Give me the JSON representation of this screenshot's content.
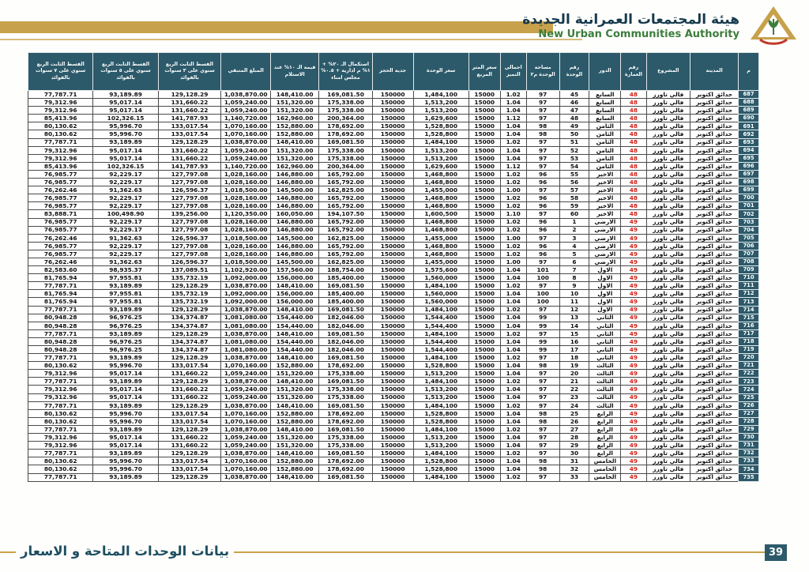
{
  "brand": {
    "title_ar": "هيئة المجتمعات العمرانية الجديدة",
    "title_en": "New Urban Communities Authority"
  },
  "footer": {
    "title": "بيانات الوحدات المتاحة و الاسعار",
    "page_number": "39"
  },
  "colors": {
    "header_teal": "#2c5a6a",
    "gold": "#c7a14b",
    "building_red": "#d02318",
    "title_green": "#3c7d3c",
    "title_dark": "#16394d"
  },
  "table": {
    "columns": [
      {
        "key": "serial",
        "label": "م",
        "width": "2.8%"
      },
      {
        "key": "city",
        "label": "المدينة",
        "width": "6.6%"
      },
      {
        "key": "project",
        "label": "المشروع",
        "width": "6.0%"
      },
      {
        "key": "building",
        "label": "رقم العمارة",
        "width": "3.5%"
      },
      {
        "key": "floor",
        "label": "الدور",
        "width": "4.3%"
      },
      {
        "key": "unit",
        "label": "رقم الوحدة",
        "width": "4.1%"
      },
      {
        "key": "area",
        "label": "مساحة الوحدة م٢",
        "width": "4.5%"
      },
      {
        "key": "premium",
        "label": "اجمالي التميز",
        "width": "3.6%"
      },
      {
        "key": "meter_price",
        "label": "سعر المتر المربع",
        "width": "4.3%"
      },
      {
        "key": "unit_price",
        "label": "سعر الوحدة",
        "width": "7.6%"
      },
      {
        "key": "reservation",
        "label": "جدية الحجز",
        "width": "5.6%"
      },
      {
        "key": "completion_20",
        "label": "استكمال الـ ٢٠% + ١% م ادارية + ٠.٥% مجلس امناء",
        "width": "7.3%"
      },
      {
        "key": "value_10",
        "label": "قيمة الـ ١٠% عند الاستلام",
        "width": "6.6%"
      },
      {
        "key": "remaining",
        "label": "المبلغ المتبقي",
        "width": "6.8%"
      },
      {
        "key": "installment_3y",
        "label": "القسط الثابت الربع سنوي على ٣ سنوات بالفوائد",
        "width": "8.6%"
      },
      {
        "key": "installment_5y",
        "label": "القسط الثابت الربع سنوي على ٥ سنوات بالفوائد",
        "width": "8.9%"
      },
      {
        "key": "installment_7y",
        "label": "القسط الثابت الربع سنوي على ٧ سنوات بالفوائد",
        "width": "8.9%"
      }
    ],
    "rows": [
      [
        "687",
        "حدائق اكتوبر",
        "فالي تاورز",
        "48",
        "السابع",
        "45",
        "97",
        "1.02",
        "15000",
        "1,484,100",
        "150000",
        "169,081.50",
        "148,410.00",
        "1,038,870.00",
        "129,128.29",
        "93,189.89",
        "77,787.71"
      ],
      [
        "688",
        "حدائق اكتوبر",
        "فالي تاورز",
        "48",
        "السابع",
        "46",
        "97",
        "1.04",
        "15000",
        "1,513,200",
        "150000",
        "175,338.00",
        "151,320.00",
        "1,059,240.00",
        "131,660.22",
        "95,017.14",
        "79,312.96"
      ],
      [
        "689",
        "حدائق اكتوبر",
        "فالي تاورز",
        "48",
        "السابع",
        "47",
        "97",
        "1.04",
        "15000",
        "1,513,200",
        "150000",
        "175,338.00",
        "151,320.00",
        "1,059,240.00",
        "131,660.22",
        "95,017.14",
        "79,312.96"
      ],
      [
        "690",
        "حدائق اكتوبر",
        "فالي تاورز",
        "48",
        "السابع",
        "48",
        "97",
        "1.12",
        "15000",
        "1,629,600",
        "150000",
        "200,364.00",
        "162,960.00",
        "1,140,720.00",
        "141,787.93",
        "102,326.15",
        "85,413.96"
      ],
      [
        "691",
        "حدائق اكتوبر",
        "فالي تاورز",
        "48",
        "الثامن",
        "49",
        "98",
        "1.04",
        "15000",
        "1,528,800",
        "150000",
        "178,692.00",
        "152,880.00",
        "1,070,160.00",
        "133,017.54",
        "95,996.70",
        "80,130.62"
      ],
      [
        "692",
        "حدائق اكتوبر",
        "فالي تاورز",
        "48",
        "الثامن",
        "50",
        "98",
        "1.04",
        "15000",
        "1,528,800",
        "150000",
        "178,692.00",
        "152,880.00",
        "1,070,160.00",
        "133,017.54",
        "95,996.70",
        "80,130.62"
      ],
      [
        "693",
        "حدائق اكتوبر",
        "فالي تاورز",
        "48",
        "الثامن",
        "51",
        "97",
        "1.02",
        "15000",
        "1,484,100",
        "150000",
        "169,081.50",
        "148,410.00",
        "1,038,870.00",
        "129,128.29",
        "93,189.89",
        "77,787.71"
      ],
      [
        "694",
        "حدائق اكتوبر",
        "فالي تاورز",
        "48",
        "الثامن",
        "52",
        "97",
        "1.04",
        "15000",
        "1,513,200",
        "150000",
        "175,338.00",
        "151,320.00",
        "1,059,240.00",
        "131,660.22",
        "95,017.14",
        "79,312.96"
      ],
      [
        "695",
        "حدائق اكتوبر",
        "فالي تاورز",
        "48",
        "الثامن",
        "53",
        "97",
        "1.04",
        "15000",
        "1,513,200",
        "150000",
        "175,338.00",
        "151,320.00",
        "1,059,240.00",
        "131,660.22",
        "95,017.14",
        "79,312.96"
      ],
      [
        "696",
        "حدائق اكتوبر",
        "فالي تاورز",
        "48",
        "الثامن",
        "54",
        "97",
        "1.12",
        "15000",
        "1,629,600",
        "150000",
        "200,364.00",
        "162,960.00",
        "1,140,720.00",
        "141,787.93",
        "102,326.15",
        "85,413.96"
      ],
      [
        "697",
        "حدائق اكتوبر",
        "فالي تاورز",
        "48",
        "الاخير",
        "55",
        "96",
        "1.02",
        "15000",
        "1,468,800",
        "150000",
        "165,792.00",
        "146,880.00",
        "1,028,160.00",
        "127,797.08",
        "92,229.17",
        "76,985.77"
      ],
      [
        "698",
        "حدائق اكتوبر",
        "فالي تاورز",
        "48",
        "الاخير",
        "56",
        "96",
        "1.02",
        "15000",
        "1,468,800",
        "150000",
        "165,792.00",
        "146,880.00",
        "1,028,160.00",
        "127,797.08",
        "92,229.17",
        "76,985.77"
      ],
      [
        "699",
        "حدائق اكتوبر",
        "فالي تاورز",
        "48",
        "الاخير",
        "57",
        "97",
        "1.00",
        "15000",
        "1,455,000",
        "150000",
        "162,825.00",
        "145,500.00",
        "1,018,500.00",
        "126,596.37",
        "91,362.63",
        "76,262.46"
      ],
      [
        "700",
        "حدائق اكتوبر",
        "فالي تاورز",
        "48",
        "الاخير",
        "58",
        "96",
        "1.02",
        "15000",
        "1,468,800",
        "150000",
        "165,792.00",
        "146,880.00",
        "1,028,160.00",
        "127,797.08",
        "92,229.17",
        "76,985.77"
      ],
      [
        "701",
        "حدائق اكتوبر",
        "فالي تاورز",
        "48",
        "الاخير",
        "59",
        "96",
        "1.02",
        "15000",
        "1,468,800",
        "150000",
        "165,792.00",
        "146,880.00",
        "1,028,160.00",
        "127,797.08",
        "92,229.17",
        "76,985.77"
      ],
      [
        "702",
        "حدائق اكتوبر",
        "فالي تاورز",
        "48",
        "الاخير",
        "60",
        "97",
        "1.10",
        "15000",
        "1,600,500",
        "150000",
        "194,107.50",
        "160,050.00",
        "1,120,350.00",
        "139,256.00",
        "100,498.90",
        "83,888.71"
      ],
      [
        "703",
        "حدائق اكتوبر",
        "فالي تاورز",
        "49",
        "الارضي",
        "1",
        "96",
        "1.02",
        "15000",
        "1,468,800",
        "150000",
        "165,792.00",
        "146,880.00",
        "1,028,160.00",
        "127,797.08",
        "92,229.17",
        "76,985.77"
      ],
      [
        "704",
        "حدائق اكتوبر",
        "فالي تاورز",
        "49",
        "الارضي",
        "2",
        "96",
        "1.02",
        "15000",
        "1,468,800",
        "150000",
        "165,792.00",
        "146,880.00",
        "1,028,160.00",
        "127,797.08",
        "92,229.17",
        "76,985.77"
      ],
      [
        "705",
        "حدائق اكتوبر",
        "فالي تاورز",
        "49",
        "الارضي",
        "3",
        "97",
        "1.00",
        "15000",
        "1,455,000",
        "150000",
        "162,825.00",
        "145,500.00",
        "1,018,500.00",
        "126,596.37",
        "91,362.63",
        "76,262.46"
      ],
      [
        "706",
        "حدائق اكتوبر",
        "فالي تاورز",
        "49",
        "الارضي",
        "4",
        "96",
        "1.02",
        "15000",
        "1,468,800",
        "150000",
        "165,792.00",
        "146,880.00",
        "1,028,160.00",
        "127,797.08",
        "92,229.17",
        "76,985.77"
      ],
      [
        "707",
        "حدائق اكتوبر",
        "فالي تاورز",
        "49",
        "الارضي",
        "5",
        "96",
        "1.02",
        "15000",
        "1,468,800",
        "150000",
        "165,792.00",
        "146,880.00",
        "1,028,160.00",
        "127,797.08",
        "92,229.17",
        "76,985.77"
      ],
      [
        "708",
        "حدائق اكتوبر",
        "فالي تاورز",
        "49",
        "الارضي",
        "6",
        "97",
        "1.00",
        "15000",
        "1,455,000",
        "150000",
        "162,825.00",
        "145,500.00",
        "1,018,500.00",
        "126,596.37",
        "91,362.63",
        "76,262.46"
      ],
      [
        "709",
        "حدائق اكتوبر",
        "فالي تاورز",
        "49",
        "الاول",
        "7",
        "101",
        "1.04",
        "15000",
        "1,575,600",
        "150000",
        "188,754.00",
        "157,560.00",
        "1,102,920.00",
        "137,089.51",
        "98,935.37",
        "82,583.60"
      ],
      [
        "710",
        "حدائق اكتوبر",
        "فالي تاورز",
        "49",
        "الاول",
        "8",
        "100",
        "1.04",
        "15000",
        "1,560,000",
        "150000",
        "185,400.00",
        "156,000.00",
        "1,092,000.00",
        "135,732.19",
        "97,955.81",
        "81,765.94"
      ],
      [
        "711",
        "حدائق اكتوبر",
        "فالي تاورز",
        "49",
        "الاول",
        "9",
        "97",
        "1.02",
        "15000",
        "1,484,100",
        "150000",
        "169,081.50",
        "148,410.00",
        "1,038,870.00",
        "129,128.29",
        "93,189.89",
        "77,787.71"
      ],
      [
        "712",
        "حدائق اكتوبر",
        "فالي تاورز",
        "49",
        "الاول",
        "10",
        "100",
        "1.04",
        "15000",
        "1,560,000",
        "150000",
        "185,400.00",
        "156,000.00",
        "1,092,000.00",
        "135,732.19",
        "97,955.81",
        "81,765.94"
      ],
      [
        "713",
        "حدائق اكتوبر",
        "فالي تاورز",
        "49",
        "الاول",
        "11",
        "100",
        "1.04",
        "15000",
        "1,560,000",
        "150000",
        "185,400.00",
        "156,000.00",
        "1,092,000.00",
        "135,732.19",
        "97,955.81",
        "81,765.94"
      ],
      [
        "714",
        "حدائق اكتوبر",
        "فالي تاورز",
        "49",
        "الاول",
        "12",
        "97",
        "1.02",
        "15000",
        "1,484,100",
        "150000",
        "169,081.50",
        "148,410.00",
        "1,038,870.00",
        "129,128.29",
        "93,189.89",
        "77,787.71"
      ],
      [
        "715",
        "حدائق اكتوبر",
        "فالي تاورز",
        "49",
        "الثاني",
        "13",
        "99",
        "1.04",
        "15000",
        "1,544,400",
        "150000",
        "182,046.00",
        "154,440.00",
        "1,081,080.00",
        "134,374.87",
        "96,976.25",
        "80,948.28"
      ],
      [
        "716",
        "حدائق اكتوبر",
        "فالي تاورز",
        "49",
        "الثاني",
        "14",
        "99",
        "1.04",
        "15000",
        "1,544,400",
        "150000",
        "182,046.00",
        "154,440.00",
        "1,081,080.00",
        "134,374.87",
        "96,976.25",
        "80,948.28"
      ],
      [
        "717",
        "حدائق اكتوبر",
        "فالي تاورز",
        "49",
        "الثاني",
        "15",
        "97",
        "1.02",
        "15000",
        "1,484,100",
        "150000",
        "169,081.50",
        "148,410.00",
        "1,038,870.00",
        "129,128.29",
        "93,189.89",
        "77,787.71"
      ],
      [
        "718",
        "حدائق اكتوبر",
        "فالي تاورز",
        "49",
        "الثاني",
        "16",
        "99",
        "1.04",
        "15000",
        "1,544,400",
        "150000",
        "182,046.00",
        "154,440.00",
        "1,081,080.00",
        "134,374.87",
        "96,976.25",
        "80,948.28"
      ],
      [
        "719",
        "حدائق اكتوبر",
        "فالي تاورز",
        "49",
        "الثاني",
        "17",
        "99",
        "1.04",
        "15000",
        "1,544,400",
        "150000",
        "182,046.00",
        "154,440.00",
        "1,081,080.00",
        "134,374.87",
        "96,976.25",
        "80,948.28"
      ],
      [
        "720",
        "حدائق اكتوبر",
        "فالي تاورز",
        "49",
        "الثاني",
        "18",
        "97",
        "1.02",
        "15000",
        "1,484,100",
        "150000",
        "169,081.50",
        "148,410.00",
        "1,038,870.00",
        "129,128.29",
        "93,189.89",
        "77,787.71"
      ],
      [
        "721",
        "حدائق اكتوبر",
        "فالي تاورز",
        "49",
        "الثالث",
        "19",
        "98",
        "1.04",
        "15000",
        "1,528,800",
        "150000",
        "178,692.00",
        "152,880.00",
        "1,070,160.00",
        "133,017.54",
        "95,996.70",
        "80,130.62"
      ],
      [
        "722",
        "حدائق اكتوبر",
        "فالي تاورز",
        "49",
        "الثالث",
        "20",
        "97",
        "1.04",
        "15000",
        "1,513,200",
        "150000",
        "175,338.00",
        "151,320.00",
        "1,059,240.00",
        "131,660.22",
        "95,017.14",
        "79,312.96"
      ],
      [
        "723",
        "حدائق اكتوبر",
        "فالي تاورز",
        "49",
        "الثالث",
        "21",
        "97",
        "1.02",
        "15000",
        "1,484,100",
        "150000",
        "169,081.50",
        "148,410.00",
        "1,038,870.00",
        "129,128.29",
        "93,189.89",
        "77,787.71"
      ],
      [
        "724",
        "حدائق اكتوبر",
        "فالي تاورز",
        "49",
        "الثالث",
        "22",
        "97",
        "1.04",
        "15000",
        "1,513,200",
        "150000",
        "175,338.00",
        "151,320.00",
        "1,059,240.00",
        "131,660.22",
        "95,017.14",
        "79,312.96"
      ],
      [
        "725",
        "حدائق اكتوبر",
        "فالي تاورز",
        "49",
        "الثالث",
        "23",
        "97",
        "1.04",
        "15000",
        "1,513,200",
        "150000",
        "175,338.00",
        "151,320.00",
        "1,059,240.00",
        "131,660.22",
        "95,017.14",
        "79,312.96"
      ],
      [
        "726",
        "حدائق اكتوبر",
        "فالي تاورز",
        "49",
        "الثالث",
        "24",
        "97",
        "1.02",
        "15000",
        "1,484,100",
        "150000",
        "169,081.50",
        "148,410.00",
        "1,038,870.00",
        "129,128.29",
        "93,189.89",
        "77,787.71"
      ],
      [
        "727",
        "حدائق اكتوبر",
        "فالي تاورز",
        "49",
        "الرابع",
        "25",
        "98",
        "1.04",
        "15000",
        "1,528,800",
        "150000",
        "178,692.00",
        "152,880.00",
        "1,070,160.00",
        "133,017.54",
        "95,996.70",
        "80,130.62"
      ],
      [
        "728",
        "حدائق اكتوبر",
        "فالي تاورز",
        "49",
        "الرابع",
        "26",
        "98",
        "1.04",
        "15000",
        "1,528,800",
        "150000",
        "178,692.00",
        "152,880.00",
        "1,070,160.00",
        "133,017.54",
        "95,996.70",
        "80,130.62"
      ],
      [
        "729",
        "حدائق اكتوبر",
        "فالي تاورز",
        "49",
        "الرابع",
        "27",
        "97",
        "1.02",
        "15000",
        "1,484,100",
        "150000",
        "169,081.50",
        "148,410.00",
        "1,038,870.00",
        "129,128.29",
        "93,189.89",
        "77,787.71"
      ],
      [
        "730",
        "حدائق اكتوبر",
        "فالي تاورز",
        "49",
        "الرابع",
        "28",
        "97",
        "1.04",
        "15000",
        "1,513,200",
        "150000",
        "175,338.00",
        "151,320.00",
        "1,059,240.00",
        "131,660.22",
        "95,017.14",
        "79,312.96"
      ],
      [
        "731",
        "حدائق اكتوبر",
        "فالي تاورز",
        "49",
        "الرابع",
        "29",
        "97",
        "1.04",
        "15000",
        "1,513,200",
        "150000",
        "175,338.00",
        "151,320.00",
        "1,059,240.00",
        "131,660.22",
        "95,017.14",
        "79,312.96"
      ],
      [
        "732",
        "حدائق اكتوبر",
        "فالي تاورز",
        "49",
        "الرابع",
        "30",
        "97",
        "1.02",
        "15000",
        "1,484,100",
        "150000",
        "169,081.50",
        "148,410.00",
        "1,038,870.00",
        "129,128.29",
        "93,189.89",
        "77,787.71"
      ],
      [
        "733",
        "حدائق اكتوبر",
        "فالي تاورز",
        "49",
        "الخامس",
        "31",
        "98",
        "1.04",
        "15000",
        "1,528,800",
        "150000",
        "178,692.00",
        "152,880.00",
        "1,070,160.00",
        "133,017.54",
        "95,996.70",
        "80,130.62"
      ],
      [
        "734",
        "حدائق اكتوبر",
        "فالي تاورز",
        "49",
        "الخامس",
        "32",
        "98",
        "1.04",
        "15000",
        "1,528,800",
        "150000",
        "178,692.00",
        "152,880.00",
        "1,070,160.00",
        "133,017.54",
        "95,996.70",
        "80,130.62"
      ],
      [
        "735",
        "حدائق اكتوبر",
        "فالي تاورز",
        "49",
        "الخامس",
        "33",
        "97",
        "1.02",
        "15000",
        "1,484,100",
        "150000",
        "169,081.50",
        "148,410.00",
        "1,038,870.00",
        "129,128.29",
        "93,189.89",
        "77,787.71"
      ]
    ]
  }
}
